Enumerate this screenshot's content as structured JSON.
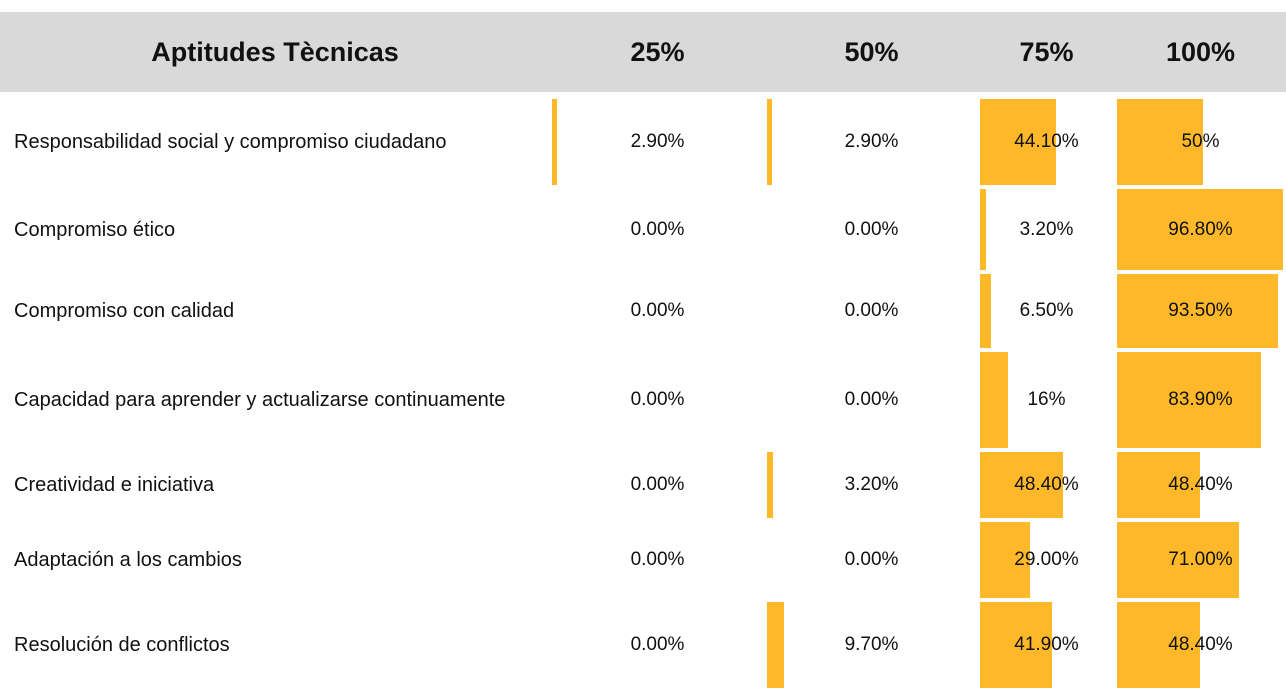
{
  "header": [
    "Aptitudes Tècnicas",
    "25%",
    "50%",
    "75%",
    "100%"
  ],
  "rows": [
    {
      "label": "Responsabilidad social y compromiso ciudadano",
      "values": [
        2.9,
        2.9,
        44.1,
        50
      ],
      "value_labels": [
        "2.90%",
        "2.90%",
        "44.10%",
        "50%"
      ]
    },
    {
      "label": "Compromiso ético",
      "values": [
        0,
        0,
        3.2,
        96.8
      ],
      "value_labels": [
        "0.00%",
        "0.00%",
        "3.20%",
        "96.80%"
      ]
    },
    {
      "label": "Compromiso con calidad",
      "values": [
        0,
        0,
        6.5,
        93.5
      ],
      "value_labels": [
        "0.00%",
        "0.00%",
        "6.50%",
        "93.50%"
      ]
    },
    {
      "label": "Capacidad para aprender y actualizarse continuamente",
      "values": [
        0,
        0,
        16,
        83.9
      ],
      "value_labels": [
        "0.00%",
        "0.00%",
        "16%",
        "83.90%"
      ]
    },
    {
      "label": "Creatividad e iniciativa",
      "values": [
        0,
        3.2,
        48.4,
        48.4
      ],
      "value_labels": [
        "0.00%",
        "3.20%",
        "48.40%",
        "48.40%"
      ]
    },
    {
      "label": "Adaptación a los cambios",
      "values": [
        0,
        0,
        29,
        71
      ],
      "value_labels": [
        "0.00%",
        "0.00%",
        "29.00%",
        "71.00%"
      ]
    },
    {
      "label": "Resolución de conflictos",
      "values": [
        0,
        9.7,
        41.9,
        48.4
      ],
      "value_labels": [
        "0.00%",
        "9.70%",
        "41.90%",
        "48.40%"
      ]
    }
  ]
}
